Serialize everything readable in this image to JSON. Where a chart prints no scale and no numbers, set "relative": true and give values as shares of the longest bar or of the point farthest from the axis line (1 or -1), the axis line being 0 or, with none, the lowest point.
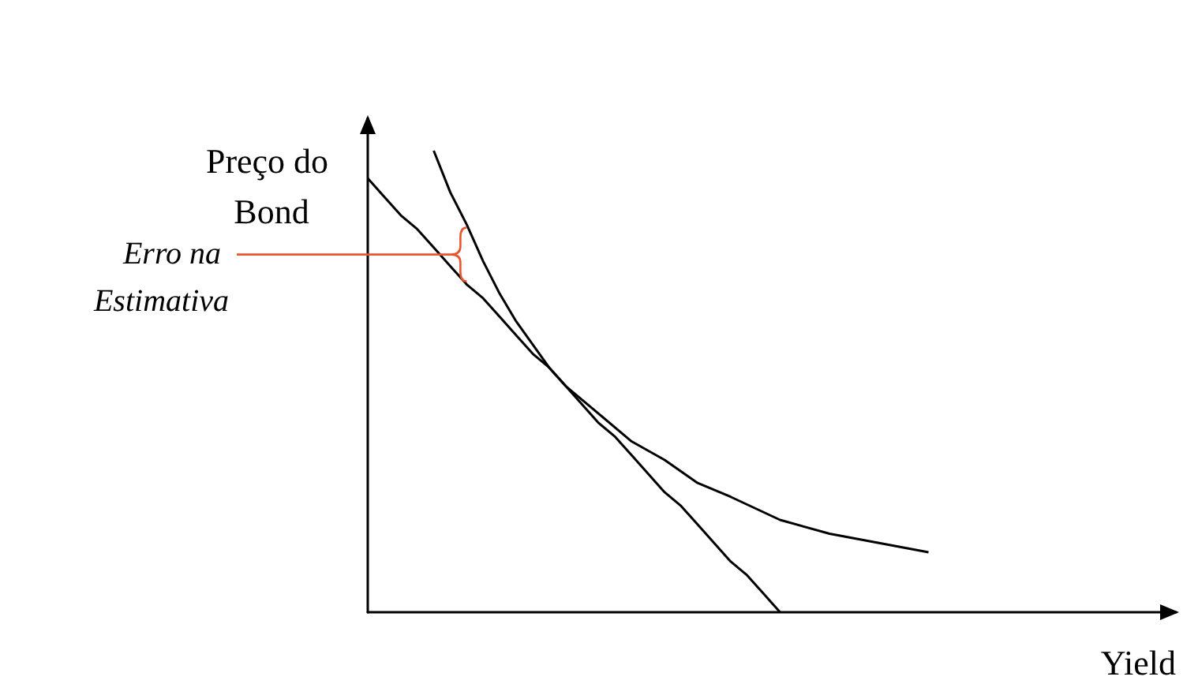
{
  "chart_data": {
    "type": "line",
    "relative": true,
    "xlabel": "Yield",
    "ylabel": "Preço do Bond",
    "annotations": [
      "Erro na Estimativa"
    ],
    "categories": [
      null,
      null,
      null,
      null,
      null,
      null,
      null,
      null,
      null,
      null,
      null,
      null,
      null,
      null,
      null,
      null,
      null,
      null,
      null,
      null,
      null,
      null,
      null,
      null,
      null,
      null,
      null,
      null,
      null,
      null,
      null,
      null,
      null,
      null,
      null,
      null,
      null,
      null,
      null,
      null,
      null,
      null,
      null,
      null,
      null,
      null,
      null,
      null,
      null,
      null
    ],
    "series": [
      {
        "color": "#000000",
        "values": [
          null,
          null,
          null,
          null,
          1.0,
          0.91,
          0.84,
          0.76,
          0.69,
          0.63,
          0.58,
          0.53,
          0.49,
          null,
          0.43,
          null,
          0.37,
          null,
          0.33,
          null,
          0.28,
          null,
          0.25,
          null,
          null,
          0.2,
          null,
          null,
          0.17,
          null,
          null,
          0.15,
          null,
          null,
          0.13,
          null,
          null,
          null,
          null,
          null,
          null,
          null,
          null,
          null,
          null,
          null,
          null,
          null,
          null,
          null
        ]
      },
      {
        "color": "#000000",
        "values": [
          0.94,
          0.9,
          0.86,
          0.83,
          0.79,
          0.75,
          0.71,
          0.68,
          0.64,
          0.6,
          0.56,
          0.53,
          0.49,
          0.45,
          0.41,
          0.38,
          0.34,
          0.3,
          0.26,
          0.23,
          0.19,
          0.15,
          0.11,
          0.08,
          0.04,
          0.0,
          null,
          null,
          null,
          null,
          null,
          null,
          null,
          null,
          null,
          null,
          null,
          null,
          null,
          null,
          null,
          null,
          null,
          null,
          null,
          null,
          null,
          null,
          null,
          null
        ]
      }
    ],
    "marker": "none"
  }
}
